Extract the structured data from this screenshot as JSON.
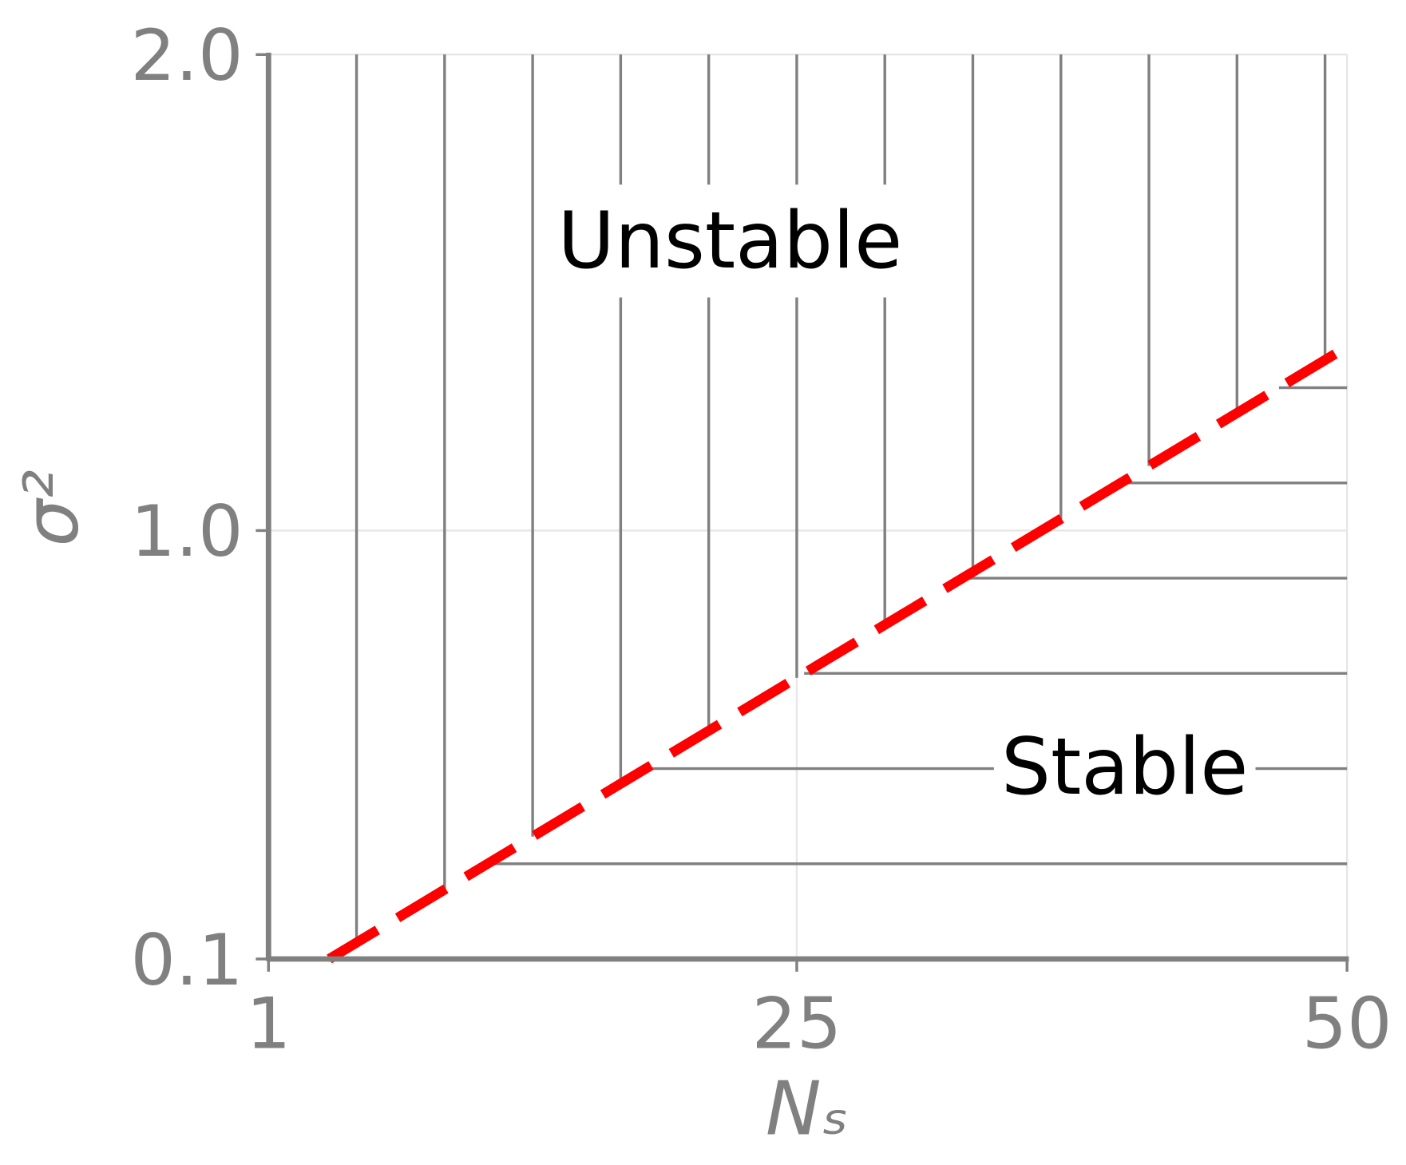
{
  "chart_data": {
    "type": "line",
    "x_label": "Nₛ",
    "y_label": "σ²",
    "xlim": [
      1,
      50
    ],
    "ylim": [
      0.1,
      2.0
    ],
    "xticks": [
      1,
      25,
      50
    ],
    "yticks": [
      0.1,
      {
        "value": 1.0,
        "label": "1.0"
      },
      {
        "value": 2.0,
        "label": "2.0"
      }
    ],
    "grid": true,
    "series": [
      {
        "color": "#ff0000",
        "x": [
          3.76,
          50
        ],
        "values": [
          0.1,
          1.386
        ]
      }
    ],
    "hatch_x": [
      5,
      9,
      13,
      17,
      21,
      25,
      29,
      33,
      37,
      41,
      45,
      49
    ],
    "hatch_y": [
      0.3,
      0.5,
      0.7,
      0.9,
      1.1,
      1.3
    ],
    "hatch_color": "#808080",
    "annotations": [
      {
        "text": "Unstable",
        "x": 21.97,
        "y": 1.61
      },
      {
        "text": "Stable",
        "x": 39.9,
        "y": 0.504
      }
    ]
  }
}
